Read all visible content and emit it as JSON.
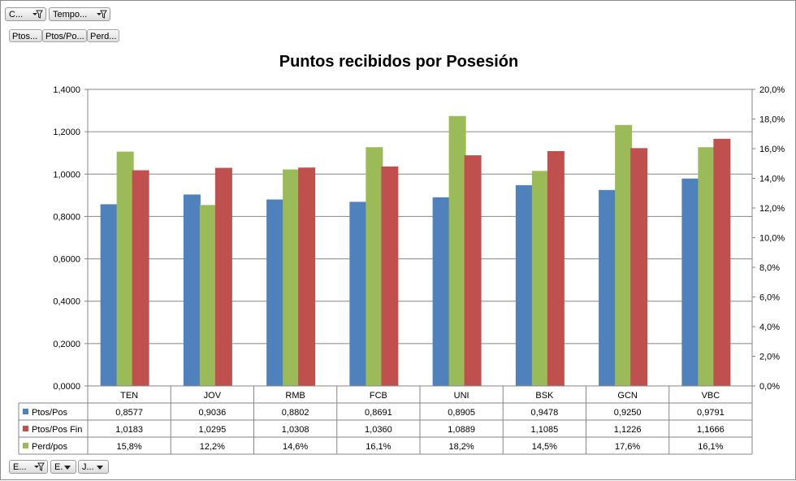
{
  "filters_top": [
    {
      "label": "C...",
      "icon": "filter-dropdown-icon"
    },
    {
      "label": "Tempo...",
      "icon": "filter-dropdown-icon"
    }
  ],
  "value_fields": [
    {
      "label": "Ptos..."
    },
    {
      "label": "Ptos/Po..."
    },
    {
      "label": "Perd..."
    }
  ],
  "filters_bottom": [
    {
      "label": "E...",
      "icon": "filter-dropdown-icon"
    },
    {
      "label": "E.",
      "icon": "dropdown-arrow-icon"
    },
    {
      "label": "J...",
      "icon": "dropdown-arrow-icon"
    }
  ],
  "colors": {
    "ptos_pos": "#4f81bd",
    "ptos_pos_fin": "#c0504d",
    "perd_pos": "#9bbb59",
    "gridline": "#868686",
    "axis": "#868686"
  },
  "chart_data": {
    "type": "bar",
    "title": "Puntos recibidos por Posesión",
    "categories": [
      "TEN",
      "JOV",
      "RMB",
      "FCB",
      "UNI",
      "BSK",
      "GCN",
      "VBC"
    ],
    "series": [
      {
        "name": "Ptos/Pos",
        "axis": "left",
        "values": [
          0.8577,
          0.9036,
          0.8802,
          0.8691,
          0.8905,
          0.9478,
          0.925,
          0.9791
        ],
        "labels": [
          "0,8577",
          "0,9036",
          "0,8802",
          "0,8691",
          "0,8905",
          "0,9478",
          "0,9250",
          "0,9791"
        ]
      },
      {
        "name": "Perd/pos",
        "axis": "right",
        "values": [
          15.8,
          12.2,
          14.6,
          16.1,
          18.2,
          14.5,
          17.6,
          16.1
        ],
        "labels": [
          "15,8%",
          "12,2%",
          "14,6%",
          "16,1%",
          "18,2%",
          "14,5%",
          "17,6%",
          "16,1%"
        ]
      },
      {
        "name": "Ptos/Pos Fin",
        "axis": "left",
        "values": [
          1.0183,
          1.0295,
          1.0308,
          1.036,
          1.0889,
          1.1085,
          1.1226,
          1.1666
        ],
        "labels": [
          "1,0183",
          "1,0295",
          "1,0308",
          "1,0360",
          "1,0889",
          "1,1085",
          "1,1226",
          "1,1666"
        ]
      }
    ],
    "y_left": {
      "range": [
        0,
        1.4
      ],
      "ticks": [
        "0,0000",
        "0,2000",
        "0,4000",
        "0,6000",
        "0,8000",
        "1,0000",
        "1,2000",
        "1,4000"
      ]
    },
    "y_right": {
      "range": [
        0,
        20
      ],
      "ticks": [
        "0,0%",
        "2,0%",
        "4,0%",
        "6,0%",
        "8,0%",
        "10,0%",
        "12,0%",
        "14,0%",
        "16,0%",
        "18,0%",
        "20,0%"
      ]
    },
    "data_table_rows": [
      "Ptos/Pos",
      "Ptos/Pos Fin",
      "Perd/pos"
    ],
    "grid": true
  }
}
